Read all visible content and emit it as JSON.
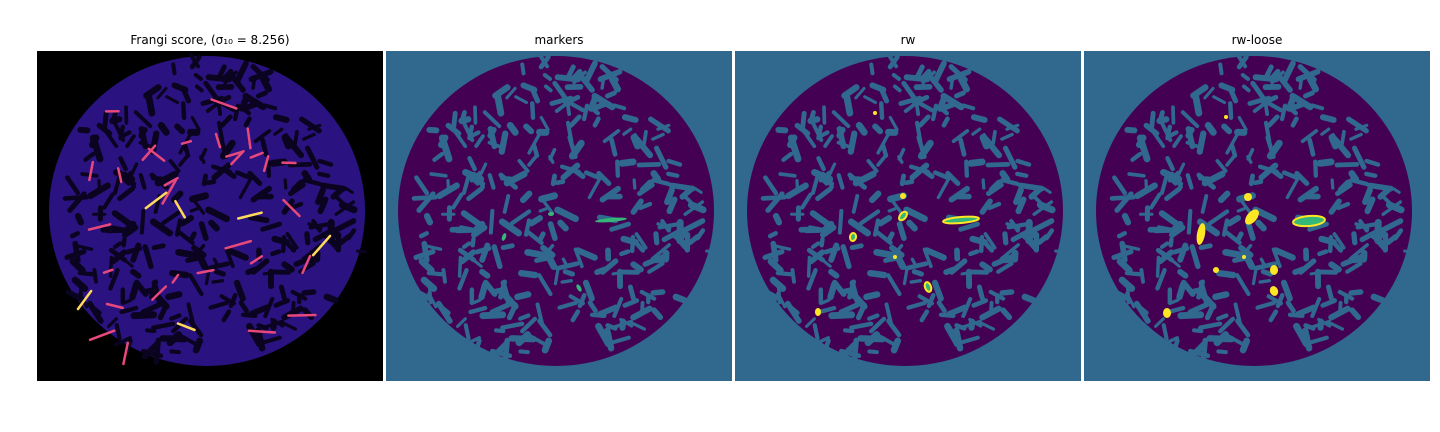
{
  "panels": [
    {
      "title": "Frangi score, (σ₁₀ = 8.256)",
      "kind": "frangi"
    },
    {
      "title": "markers",
      "kind": "markers"
    },
    {
      "title": "rw",
      "kind": "rw"
    },
    {
      "title": "rw-loose",
      "kind": "rw-loose"
    }
  ],
  "colors": {
    "frangi_background": "#000000",
    "frangi_tissue": "#2a1380",
    "frangi_highlight": "#e8487a",
    "frangi_peak": "#ffd95c",
    "segmentation_background": "#30688e",
    "segmentation_tissue": "#440154",
    "segmentation_marker_green": "#35b779",
    "segmentation_marker_yellow": "#fde725"
  }
}
